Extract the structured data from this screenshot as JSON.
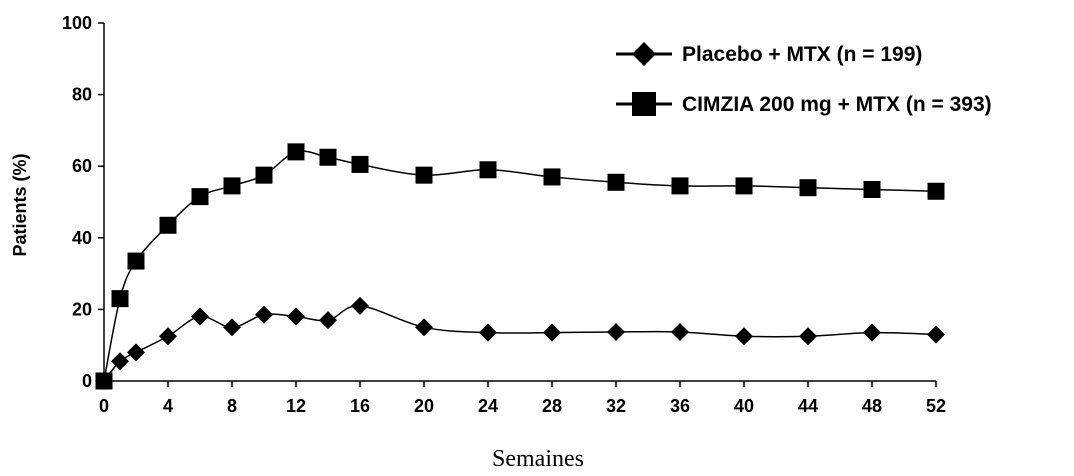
{
  "chart_data": {
    "type": "line",
    "xlabel": "Semaines",
    "ylabel": "Patients (%)",
    "xlim": [
      0,
      52
    ],
    "ylim": [
      0,
      100
    ],
    "x_ticks": [
      0,
      4,
      8,
      12,
      16,
      20,
      24,
      28,
      32,
      36,
      40,
      44,
      48,
      52
    ],
    "y_ticks": [
      0,
      20,
      40,
      60,
      80,
      100
    ],
    "grid": false,
    "legend_position": "top-right",
    "series": [
      {
        "name": "Placebo + MTX (n = 199)",
        "marker": "diamond",
        "x": [
          0,
          1,
          2,
          4,
          6,
          8,
          10,
          12,
          14,
          16,
          20,
          24,
          28,
          32,
          36,
          40,
          44,
          48,
          52
        ],
        "y": [
          0,
          5.5,
          8,
          12.5,
          18,
          15,
          18.5,
          18,
          17,
          21,
          15,
          13.5,
          13.5,
          13.7,
          13.7,
          12.5,
          12.5,
          13.5,
          13
        ]
      },
      {
        "name": "CIMZIA 200 mg + MTX (n = 393)",
        "marker": "square",
        "x": [
          0,
          1,
          2,
          4,
          6,
          8,
          10,
          12,
          14,
          16,
          20,
          24,
          28,
          32,
          36,
          40,
          44,
          48,
          52
        ],
        "y": [
          0,
          23,
          33.5,
          43.5,
          51.5,
          54.5,
          57.5,
          64,
          62.5,
          60.5,
          57.5,
          59,
          57,
          55.5,
          54.5,
          54.5,
          54,
          53.5,
          53
        ]
      }
    ]
  }
}
